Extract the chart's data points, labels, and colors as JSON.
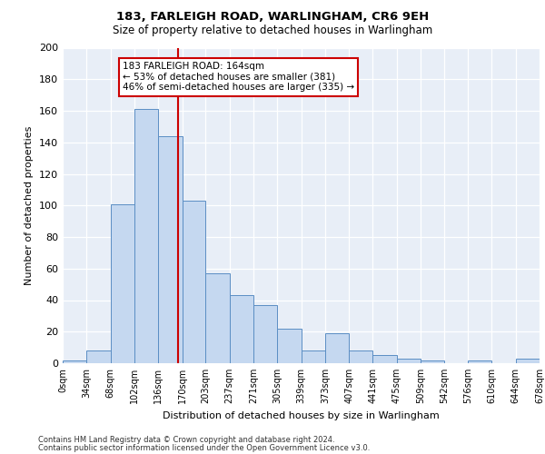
{
  "title1": "183, FARLEIGH ROAD, WARLINGHAM, CR6 9EH",
  "title2": "Size of property relative to detached houses in Warlingham",
  "xlabel": "Distribution of detached houses by size in Warlingham",
  "ylabel": "Number of detached properties",
  "footer1": "Contains HM Land Registry data © Crown copyright and database right 2024.",
  "footer2": "Contains public sector information licensed under the Open Government Licence v3.0.",
  "bin_edges": [
    0,
    34,
    68,
    102,
    136,
    170,
    203,
    237,
    271,
    305,
    339,
    373,
    407,
    441,
    475,
    509,
    542,
    576,
    610,
    644,
    678
  ],
  "bar_heights": [
    2,
    8,
    101,
    161,
    144,
    103,
    57,
    43,
    37,
    22,
    8,
    19,
    8,
    5,
    3,
    2,
    0,
    2,
    0,
    3
  ],
  "bar_color": "#c5d8f0",
  "bar_edge_color": "#5b8ec4",
  "bg_color": "#e8eef7",
  "grid_color": "#ffffff",
  "vline_x": 164,
  "vline_color": "#cc0000",
  "annotation_line1": "183 FARLEIGH ROAD: 164sqm",
  "annotation_line2": "← 53% of detached houses are smaller (381)",
  "annotation_line3": "46% of semi-detached houses are larger (335) →",
  "annotation_box_color": "#cc0000",
  "ylim": [
    0,
    200
  ],
  "yticks": [
    0,
    20,
    40,
    60,
    80,
    100,
    120,
    140,
    160,
    180,
    200
  ],
  "tick_labels": [
    "0sqm",
    "34sqm",
    "68sqm",
    "102sqm",
    "136sqm",
    "170sqm",
    "203sqm",
    "237sqm",
    "271sqm",
    "305sqm",
    "339sqm",
    "373sqm",
    "407sqm",
    "441sqm",
    "475sqm",
    "509sqm",
    "542sqm",
    "576sqm",
    "610sqm",
    "644sqm",
    "678sqm"
  ]
}
